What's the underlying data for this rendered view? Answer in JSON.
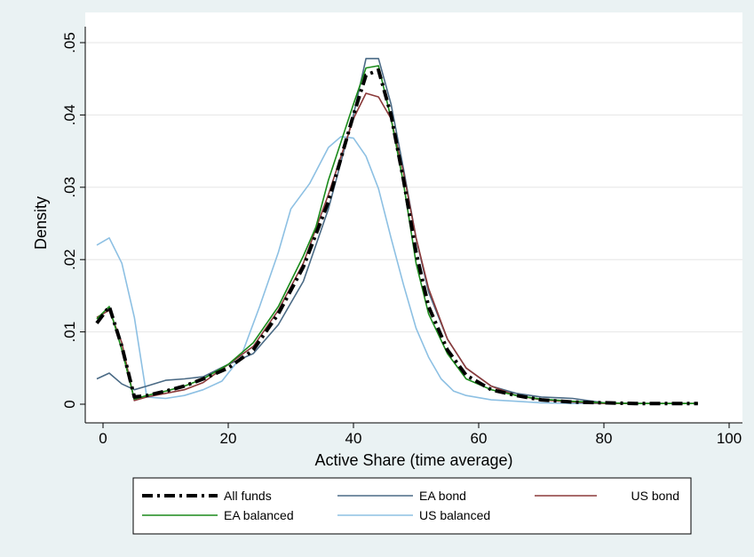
{
  "chart_data": {
    "type": "line",
    "title": "",
    "xlabel": "Active Share (time average)",
    "ylabel": "Density",
    "xlim": [
      -2,
      100
    ],
    "ylim": [
      0,
      0.05
    ],
    "x_ticks": [
      0,
      20,
      40,
      60,
      80,
      100
    ],
    "x_tick_labels": [
      "0",
      "20",
      "40",
      "60",
      "80",
      "100"
    ],
    "y_ticks": [
      0,
      0.01,
      0.02,
      0.03,
      0.04,
      0.05
    ],
    "y_tick_labels": [
      "0",
      ".01",
      ".02",
      ".03",
      ".04",
      ".05"
    ],
    "grid": true,
    "legend_position": "bottom",
    "series": [
      {
        "name": "All funds",
        "color": "#000000",
        "style": "dash-dot-thick",
        "x": [
          -1,
          1,
          3,
          5,
          7,
          10,
          13,
          16,
          20,
          24,
          28,
          32,
          36,
          40,
          42,
          44,
          46,
          48,
          50,
          52,
          55,
          58,
          62,
          66,
          70,
          75,
          80,
          85,
          90,
          95
        ],
        "y": [
          0.0112,
          0.0135,
          0.008,
          0.001,
          0.0012,
          0.0018,
          0.0025,
          0.0035,
          0.005,
          0.0075,
          0.0125,
          0.019,
          0.028,
          0.04,
          0.0455,
          0.0462,
          0.04,
          0.031,
          0.021,
          0.0135,
          0.0075,
          0.004,
          0.002,
          0.0012,
          0.0006,
          0.0003,
          0.0002,
          0.0001,
          0.0001,
          0.0001
        ]
      },
      {
        "name": "EA bond",
        "color": "#4a6a85",
        "style": "solid",
        "x": [
          -1,
          1,
          3,
          5,
          7,
          10,
          13,
          16,
          20,
          24,
          28,
          32,
          36,
          40,
          42,
          44,
          46,
          48,
          50,
          52,
          55,
          58,
          62,
          66,
          70,
          75,
          80,
          85,
          90,
          95
        ],
        "y": [
          0.0035,
          0.0043,
          0.0028,
          0.002,
          0.0025,
          0.0033,
          0.0035,
          0.0038,
          0.0055,
          0.007,
          0.011,
          0.017,
          0.027,
          0.04,
          0.0478,
          0.0478,
          0.0415,
          0.0325,
          0.023,
          0.0155,
          0.009,
          0.005,
          0.0025,
          0.0015,
          0.001,
          0.0008,
          0.0002,
          0.0001,
          0.0001,
          0.0001
        ]
      },
      {
        "name": "US bond",
        "color": "#8b3a3a",
        "style": "solid",
        "x": [
          -1,
          1,
          3,
          5,
          7,
          10,
          13,
          16,
          20,
          24,
          28,
          32,
          36,
          40,
          42,
          44,
          46,
          48,
          50,
          52,
          55,
          58,
          62,
          66,
          70,
          75,
          80,
          85,
          90,
          95
        ],
        "y": [
          0.012,
          0.013,
          0.0085,
          0.0005,
          0.001,
          0.0015,
          0.002,
          0.003,
          0.0055,
          0.008,
          0.013,
          0.0195,
          0.029,
          0.0395,
          0.043,
          0.0425,
          0.0395,
          0.032,
          0.023,
          0.016,
          0.009,
          0.005,
          0.0025,
          0.0012,
          0.0006,
          0.0003,
          0.0001,
          0.0001,
          0.0001,
          0.0001
        ]
      },
      {
        "name": "EA balanced",
        "color": "#1a8a1a",
        "style": "solid",
        "x": [
          -1,
          1,
          3,
          5,
          7,
          10,
          13,
          16,
          20,
          24,
          28,
          32,
          34,
          36,
          40,
          42,
          44,
          46,
          48,
          50,
          52,
          55,
          58,
          62,
          66,
          70,
          75,
          80,
          85,
          90,
          95
        ],
        "y": [
          0.0118,
          0.0135,
          0.0075,
          0.0007,
          0.0012,
          0.0018,
          0.0025,
          0.0035,
          0.0055,
          0.0085,
          0.0135,
          0.0205,
          0.0245,
          0.031,
          0.0415,
          0.0465,
          0.0468,
          0.0395,
          0.0305,
          0.0195,
          0.0125,
          0.007,
          0.0035,
          0.002,
          0.0012,
          0.0007,
          0.0004,
          0.0002,
          0.0001,
          0.0001,
          0.0001
        ]
      },
      {
        "name": "US balanced",
        "color": "#8dc0e3",
        "style": "solid",
        "x": [
          -1,
          1,
          3,
          5,
          7,
          10,
          13,
          16,
          19,
          22,
          25,
          28,
          30,
          33,
          36,
          38,
          40,
          42,
          44,
          46,
          48,
          50,
          52,
          54,
          56,
          58,
          62,
          66,
          70,
          75,
          80
        ],
        "y": [
          0.022,
          0.023,
          0.0195,
          0.012,
          0.001,
          0.0008,
          0.0012,
          0.002,
          0.0032,
          0.0065,
          0.0135,
          0.021,
          0.027,
          0.0305,
          0.0355,
          0.037,
          0.0368,
          0.0343,
          0.0298,
          0.023,
          0.0165,
          0.0105,
          0.0065,
          0.0035,
          0.0018,
          0.0012,
          0.0006,
          0.0004,
          0.0002,
          0.0001,
          0.0001
        ]
      }
    ]
  }
}
